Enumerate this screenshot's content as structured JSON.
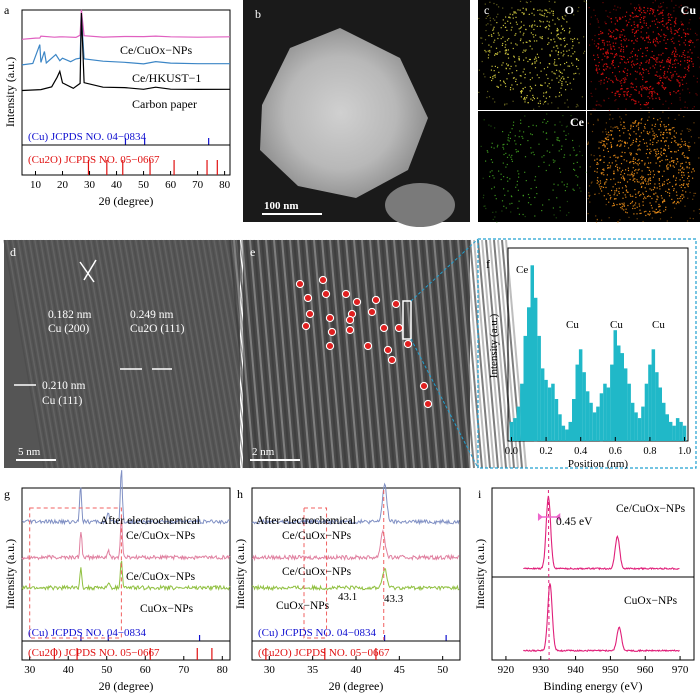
{
  "panels": {
    "a": {
      "label": "a",
      "xlabel": "2θ (degree)",
      "ylabel": "Intensity (a.u.)",
      "xticks": [
        "10",
        "20",
        "30",
        "40",
        "50",
        "60",
        "70",
        "80"
      ],
      "series_labels": [
        "Ce/CuOx−NPs",
        "Ce/HKUST−1",
        "Carbon paper"
      ],
      "ref_cu": "(Cu) JCPDS NO. 04−0834",
      "ref_cu2o": "(Cu2O) JCPDS NO. 05−0667"
    },
    "b": {
      "label": "b",
      "scalebar": "100 nm"
    },
    "c": {
      "label": "c",
      "maps": [
        "O",
        "Cu",
        "Ce",
        ""
      ]
    },
    "d": {
      "label": "d",
      "annotations": [
        "0.182 nm",
        "Cu (200)",
        "0.249 nm",
        "Cu2O (111)",
        "0.210 nm",
        "Cu (111)"
      ],
      "scalebar": "5 nm"
    },
    "e": {
      "label": "e",
      "scalebar": "2 nm"
    },
    "f": {
      "label": "f",
      "xlabel": "Position (nm)",
      "ylabel": "Intensity (a.u.)",
      "xticks": [
        "0.0",
        "0.2",
        "0.4",
        "0.6",
        "0.8",
        "1.0"
      ],
      "peak_labels": [
        "Ce",
        "Cu",
        "Cu",
        "Cu"
      ]
    },
    "g": {
      "label": "g",
      "xlabel": "2θ (degree)",
      "ylabel": "Intensity (a.u.)",
      "xticks": [
        "30",
        "40",
        "50",
        "60",
        "70",
        "80"
      ],
      "series_labels": [
        "After electrochemical",
        "Ce/CuOx−NPs",
        "Ce/CuOx−NPs",
        "CuOx−NPs"
      ],
      "ref_cu": "(Cu) JCPDS NO. 04−0834",
      "ref_cu2o": "(Cu2O) JCPDS NO. 05−0667"
    },
    "h": {
      "label": "h",
      "xlabel": "2θ (degree)",
      "ylabel": "Intensity (a.u.)",
      "xticks": [
        "30",
        "35",
        "40",
        "45",
        "50"
      ],
      "series_labels": [
        "After electrochemical",
        "Ce/CuOx−NPs",
        "Ce/CuOx−NPs",
        "CuOx−NPs"
      ],
      "annotations": [
        "43.1",
        "43.3"
      ],
      "ref_cu": "(Cu) JCPDS NO. 04−0834",
      "ref_cu2o": "(Cu2O) JCPDS NO. 05−0667"
    },
    "i": {
      "label": "i",
      "xlabel": "Binding energy (eV)",
      "ylabel": "Intensity (a.u.)",
      "xticks": [
        "920",
        "930",
        "940",
        "950",
        "960",
        "970"
      ],
      "series_labels": [
        "Ce/CuOx−NPs",
        "CuOx−NPs"
      ],
      "shift_label": "0.45 eV"
    }
  },
  "colors": {
    "pink": "#e060c0",
    "blue": "#3c86c6",
    "black": "#000000",
    "slate": "#8090c4",
    "rose": "#e080a0",
    "lime": "#90c040",
    "teal": "#20b8c8",
    "magenta": "#e0207a",
    "ref_blue": "#1010d0",
    "ref_red": "#e01010",
    "dash_red": "#f06060"
  },
  "chart_data": [
    {
      "panel": "a",
      "type": "line",
      "xlim": [
        5,
        82
      ],
      "x_axis_label": "2θ (degree)",
      "series": [
        {
          "name": "Ce/CuOx−NPs",
          "x": [
            5,
            10,
            11.6,
            12,
            17,
            19,
            20,
            25,
            26.5,
            27,
            28,
            35,
            43,
            50,
            54.5,
            60,
            70,
            82
          ],
          "y": [
            0.76,
            0.77,
            0.77,
            0.79,
            0.78,
            0.78,
            0.78,
            0.78,
            0.79,
            1.0,
            0.79,
            0.78,
            0.78,
            0.78,
            0.79,
            0.78,
            0.78,
            0.78
          ]
        },
        {
          "name": "Ce/HKUST−1",
          "x": [
            5,
            9,
            11.6,
            12,
            13.3,
            14,
            17.5,
            19,
            20,
            23,
            25,
            26.5,
            27,
            28,
            35,
            43,
            50,
            54.5,
            60,
            70,
            82
          ],
          "y": [
            0.55,
            0.56,
            0.72,
            0.57,
            0.66,
            0.57,
            0.64,
            0.58,
            0.6,
            0.58,
            0.6,
            0.6,
            0.95,
            0.6,
            0.58,
            0.57,
            0.56,
            0.58,
            0.56,
            0.56,
            0.56
          ]
        },
        {
          "name": "Carbon paper",
          "x": [
            5,
            12,
            16,
            18,
            19,
            20,
            24,
            26.5,
            27,
            28,
            35,
            43,
            50,
            54.5,
            60,
            70,
            82
          ],
          "y": [
            0.34,
            0.35,
            0.37,
            0.45,
            0.5,
            0.4,
            0.36,
            0.4,
            0.98,
            0.4,
            0.37,
            0.36,
            0.35,
            0.37,
            0.35,
            0.35,
            0.35
          ]
        }
      ],
      "reference_lines": {
        "Cu": [
          43.3,
          50.4,
          74.1
        ],
        "Cu2O": [
          29.6,
          36.4,
          42.3,
          52.4,
          61.3,
          73.5,
          77.3
        ]
      }
    },
    {
      "panel": "f",
      "type": "bar",
      "x_axis_label": "Position (nm)",
      "xlim": [
        -0.02,
        1.02
      ],
      "x": [
        0.0,
        0.02,
        0.04,
        0.06,
        0.08,
        0.1,
        0.12,
        0.14,
        0.16,
        0.18,
        0.2,
        0.22,
        0.24,
        0.26,
        0.28,
        0.3,
        0.32,
        0.34,
        0.36,
        0.38,
        0.4,
        0.42,
        0.44,
        0.46,
        0.48,
        0.5,
        0.52,
        0.54,
        0.56,
        0.58,
        0.6,
        0.62,
        0.64,
        0.66,
        0.68,
        0.7,
        0.72,
        0.74,
        0.76,
        0.78,
        0.8,
        0.82,
        0.84,
        0.86,
        0.88,
        0.9,
        0.92,
        0.94,
        0.96,
        0.98,
        1.0
      ],
      "values": [
        0.1,
        0.12,
        0.18,
        0.3,
        0.55,
        0.7,
        0.92,
        0.75,
        0.55,
        0.38,
        0.32,
        0.28,
        0.3,
        0.22,
        0.14,
        0.08,
        0.06,
        0.1,
        0.22,
        0.4,
        0.48,
        0.36,
        0.26,
        0.2,
        0.15,
        0.18,
        0.25,
        0.3,
        0.28,
        0.4,
        0.58,
        0.5,
        0.46,
        0.38,
        0.3,
        0.2,
        0.15,
        0.12,
        0.18,
        0.3,
        0.4,
        0.48,
        0.36,
        0.28,
        0.2,
        0.14,
        0.1,
        0.08,
        0.12,
        0.1,
        0.08
      ]
    },
    {
      "panel": "g",
      "type": "line",
      "x_axis_label": "2θ (degree)",
      "xlim": [
        28,
        82
      ],
      "series": [
        {
          "name": "After electrochemical Ce/CuOx−NPs",
          "peaks": [
            [
              43.2,
              0.28
            ],
            [
              50.4,
              0.07
            ],
            [
              53.8,
              0.4
            ]
          ],
          "baseline": 0.82
        },
        {
          "name": "Ce/CuOx−NPs",
          "peaks": [
            [
              43.3,
              0.2
            ],
            [
              50.4,
              0.05
            ],
            [
              53.8,
              0.3
            ]
          ],
          "baseline": 0.55
        },
        {
          "name": "CuOx−NPs",
          "peaks": [
            [
              43.3,
              0.14
            ],
            [
              50.4,
              0.04
            ],
            [
              53.8,
              0.22
            ]
          ],
          "baseline": 0.32
        }
      ],
      "reference_lines": {
        "Cu": [
          43.3,
          50.4,
          74.1
        ],
        "Cu2O": [
          36.4,
          42.3,
          61.3,
          73.5,
          77.3
        ]
      }
    },
    {
      "panel": "h",
      "type": "line",
      "x_axis_label": "2θ (degree)",
      "xlim": [
        28,
        52
      ],
      "series": [
        {
          "name": "After electrochemical Ce/CuOx−NPs",
          "peaks": [
            [
              43.3,
              0.28
            ]
          ],
          "baseline": 0.82
        },
        {
          "name": "Ce/CuOx−NPs",
          "peaks": [
            [
              43.1,
              0.2
            ]
          ],
          "baseline": 0.55
        },
        {
          "name": "CuOx−NPs",
          "peaks": [
            [
              43.3,
              0.14
            ]
          ],
          "baseline": 0.32
        }
      ],
      "reference_lines": {
        "Cu": [
          43.3,
          50.4
        ],
        "Cu2O": [
          29.6,
          36.4,
          42.3
        ]
      }
    },
    {
      "panel": "i",
      "type": "line",
      "x_axis_label": "Binding energy (eV)",
      "xlim": [
        916,
        974
      ],
      "series": [
        {
          "name": "Ce/CuOx−NPs",
          "peaks": [
            [
              932.2,
              1.0
            ],
            [
              952.0,
              0.45
            ]
          ]
        },
        {
          "name": "CuOx−NPs",
          "peaks": [
            [
              932.65,
              1.0
            ],
            [
              952.5,
              0.35
            ]
          ]
        }
      ]
    }
  ]
}
